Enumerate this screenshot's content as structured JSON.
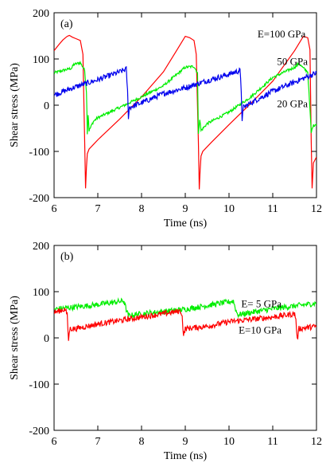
{
  "chart_data": [
    {
      "type": "line",
      "panel_label": "(a)",
      "xlabel": "Time (ns)",
      "ylabel": "Shear stress (MPa)",
      "xlim": [
        6,
        12
      ],
      "ylim": [
        -200,
        200
      ],
      "xticks": [
        6,
        7,
        8,
        9,
        10,
        11,
        12
      ],
      "yticks": [
        -200,
        -100,
        0,
        100,
        200
      ],
      "series": [
        {
          "name": "E=100 GPa",
          "color": "#ff0000",
          "noise": 0,
          "points": [
            [
              6.0,
              118
            ],
            [
              6.1,
              130
            ],
            [
              6.2,
              141
            ],
            [
              6.3,
              149
            ],
            [
              6.35,
              151
            ],
            [
              6.42,
              147
            ],
            [
              6.5,
              144
            ],
            [
              6.6,
              140
            ],
            [
              6.66,
              110
            ],
            [
              6.7,
              -80
            ],
            [
              6.72,
              -180
            ],
            [
              6.74,
              -135
            ],
            [
              6.76,
              -105
            ],
            [
              6.8,
              -95
            ],
            [
              6.9,
              -85
            ],
            [
              7.0,
              -75
            ],
            [
              7.5,
              -30
            ],
            [
              8.0,
              18
            ],
            [
              8.5,
              72
            ],
            [
              8.8,
              118
            ],
            [
              9.0,
              149
            ],
            [
              9.1,
              146
            ],
            [
              9.2,
              140
            ],
            [
              9.25,
              110
            ],
            [
              9.3,
              -80
            ],
            [
              9.32,
              -182
            ],
            [
              9.34,
              -140
            ],
            [
              9.36,
              -110
            ],
            [
              9.4,
              -100
            ],
            [
              9.6,
              -80
            ],
            [
              10.0,
              -42
            ],
            [
              10.5,
              4
            ],
            [
              11.0,
              52
            ],
            [
              11.5,
              118
            ],
            [
              11.7,
              149
            ],
            [
              11.8,
              146
            ],
            [
              11.85,
              120
            ],
            [
              11.88,
              -80
            ],
            [
              11.9,
              -180
            ],
            [
              11.93,
              -125
            ],
            [
              12.0,
              -112
            ]
          ]
        },
        {
          "name": "50 GPa",
          "color": "#00ee00",
          "noise": 3,
          "points": [
            [
              6.0,
              70
            ],
            [
              6.2,
              75
            ],
            [
              6.4,
              80
            ],
            [
              6.45,
              88
            ],
            [
              6.6,
              92
            ],
            [
              6.65,
              84
            ],
            [
              6.7,
              75
            ],
            [
              6.74,
              30
            ],
            [
              6.76,
              -60
            ],
            [
              6.78,
              -20
            ],
            [
              6.8,
              -55
            ],
            [
              6.9,
              -35
            ],
            [
              7.0,
              -27
            ],
            [
              7.5,
              -5
            ],
            [
              8.0,
              18
            ],
            [
              8.5,
              42
            ],
            [
              9.0,
              82
            ],
            [
              9.2,
              84
            ],
            [
              9.28,
              70
            ],
            [
              9.3,
              -60
            ],
            [
              9.33,
              -30
            ],
            [
              9.36,
              -55
            ],
            [
              9.5,
              -40
            ],
            [
              10.0,
              -15
            ],
            [
              10.5,
              18
            ],
            [
              11.0,
              60
            ],
            [
              11.5,
              82
            ],
            [
              11.6,
              90
            ],
            [
              11.7,
              80
            ],
            [
              11.8,
              72
            ],
            [
              11.85,
              -10
            ],
            [
              11.88,
              -60
            ],
            [
              11.92,
              -45
            ],
            [
              12.0,
              -40
            ]
          ]
        },
        {
          "name": "20 GPa",
          "color": "#0000ee",
          "noise": 6,
          "points": [
            [
              6.0,
              22
            ],
            [
              6.5,
              40
            ],
            [
              7.0,
              55
            ],
            [
              7.5,
              72
            ],
            [
              7.65,
              78
            ],
            [
              7.68,
              30
            ],
            [
              7.7,
              -25
            ],
            [
              7.72,
              -5
            ],
            [
              8.0,
              5
            ],
            [
              8.5,
              25
            ],
            [
              9.0,
              38
            ],
            [
              9.5,
              53
            ],
            [
              10.0,
              67
            ],
            [
              10.25,
              75
            ],
            [
              10.28,
              30
            ],
            [
              10.3,
              -30
            ],
            [
              10.33,
              -5
            ],
            [
              10.5,
              5
            ],
            [
              11.0,
              30
            ],
            [
              11.5,
              50
            ],
            [
              12.0,
              70
            ]
          ]
        }
      ],
      "annotations": [
        "E=100 GPa",
        "50 GPa",
        "20 GPa"
      ]
    },
    {
      "type": "line",
      "panel_label": "(b)",
      "xlabel": "Time (ns)",
      "ylabel": "Shear stress (MPa)",
      "xlim": [
        6,
        12
      ],
      "ylim": [
        -200,
        200
      ],
      "xticks": [
        6,
        7,
        8,
        9,
        10,
        11,
        12
      ],
      "yticks": [
        -200,
        -100,
        0,
        100,
        200
      ],
      "series": [
        {
          "name": "E= 5 GPa",
          "color": "#00ee00",
          "noise": 6,
          "points": [
            [
              6.0,
              62
            ],
            [
              7.0,
              72
            ],
            [
              7.6,
              80
            ],
            [
              7.65,
              60
            ],
            [
              7.7,
              48
            ],
            [
              8.0,
              52
            ],
            [
              9.0,
              62
            ],
            [
              10.0,
              78
            ],
            [
              10.1,
              80
            ],
            [
              10.15,
              62
            ],
            [
              10.2,
              50
            ],
            [
              11.0,
              63
            ],
            [
              12.0,
              75
            ]
          ]
        },
        {
          "name": "E=10 GPa",
          "color": "#ff0000",
          "noise": 6,
          "points": [
            [
              6.0,
              55
            ],
            [
              6.25,
              62
            ],
            [
              6.3,
              50
            ],
            [
              6.33,
              -5
            ],
            [
              6.36,
              20
            ],
            [
              6.5,
              20
            ],
            [
              7.0,
              30
            ],
            [
              8.0,
              45
            ],
            [
              8.9,
              58
            ],
            [
              8.93,
              45
            ],
            [
              8.96,
              5
            ],
            [
              9.0,
              20
            ],
            [
              9.5,
              25
            ],
            [
              10.0,
              35
            ],
            [
              11.0,
              45
            ],
            [
              11.5,
              52
            ],
            [
              11.53,
              40
            ],
            [
              11.56,
              -5
            ],
            [
              11.6,
              20
            ],
            [
              12.0,
              25
            ]
          ]
        }
      ],
      "annotations": [
        "E= 5 GPa",
        "E=10 GPa"
      ]
    }
  ]
}
